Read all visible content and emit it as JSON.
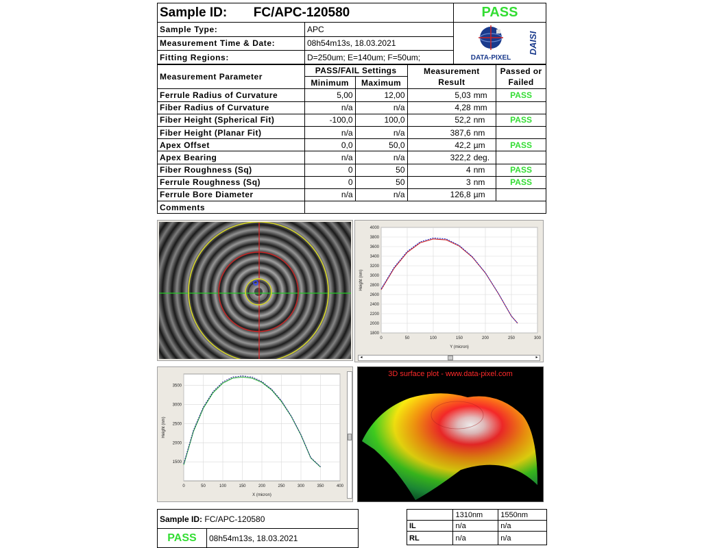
{
  "header": {
    "sample_id_label": "Sample ID:",
    "sample_id": "FC/APC-120580",
    "status": "PASS",
    "rows": [
      {
        "label": "Sample Type:",
        "value": "APC"
      },
      {
        "label": "Measurement Time & Date:",
        "value": "08h54m13s, 18.03.2021"
      },
      {
        "label": "Fitting Regions:",
        "value": "D=250um;   E=140um;   F=50um;"
      }
    ],
    "logo_text": "DATA-PIXEL",
    "logo_side_text": "DAISI"
  },
  "table": {
    "col_parameter": "Measurement Parameter",
    "col_settings": "PASS/FAIL Settings",
    "col_min": "Minimum",
    "col_max": "Maximum",
    "col_result": "Measurement Result",
    "col_status": "Passed or Failed",
    "rows": [
      {
        "param": "Ferrule Radius of Curvature",
        "min": "5,00",
        "max": "12,00",
        "result": "5,03",
        "unit": "mm",
        "status": "PASS"
      },
      {
        "param": "Fiber Radius of Curvature",
        "min": "n/a",
        "max": "n/a",
        "result": "4,28",
        "unit": "mm",
        "status": ""
      },
      {
        "param": "Fiber Height (Spherical Fit)",
        "min": "-100,0",
        "max": "100,0",
        "result": "52,2",
        "unit": "nm",
        "status": "PASS"
      },
      {
        "param": "Fiber Height (Planar Fit)",
        "min": "n/a",
        "max": "n/a",
        "result": "387,6",
        "unit": "nm",
        "status": ""
      },
      {
        "param": "Apex Offset",
        "min": "0,0",
        "max": "50,0",
        "result": "42,2",
        "unit": "µm",
        "status": "PASS"
      },
      {
        "param": "Apex Bearing",
        "min": "n/a",
        "max": "n/a",
        "result": "322,2",
        "unit": "deg.",
        "status": ""
      },
      {
        "param": "Fiber Roughness (Sq)",
        "min": "0",
        "max": "50",
        "result": "4",
        "unit": "nm",
        "status": "PASS"
      },
      {
        "param": "Ferrule Roughness (Sq)",
        "min": "0",
        "max": "50",
        "result": "3",
        "unit": "nm",
        "status": "PASS"
      },
      {
        "param": "Ferrule Bore Diameter",
        "min": "n/a",
        "max": "n/a",
        "result": "126,8",
        "unit": "µm",
        "status": ""
      }
    ],
    "comments_label": "Comments"
  },
  "surface_plot": {
    "title": "3D surface plot - www.data-pixel.com"
  },
  "chart_data": [
    {
      "type": "line",
      "xlabel": "Y (micron)",
      "ylabel": "Height (nm)",
      "xlim": [
        0,
        300
      ],
      "ylim": [
        1800,
        4000
      ],
      "xticks": [
        "0",
        "50",
        "100",
        "150",
        "200",
        "250",
        "300"
      ],
      "yticks": [
        "1800",
        "2000",
        "2200",
        "2400",
        "2600",
        "2800",
        "3000",
        "3200",
        "3400",
        "3600",
        "3800",
        "4000"
      ],
      "series": [
        {
          "color": "#cc2222",
          "x": [
            0,
            25,
            50,
            75,
            100,
            125,
            150,
            175,
            200,
            225,
            250,
            262
          ],
          "y": [
            2700,
            3150,
            3480,
            3680,
            3760,
            3740,
            3610,
            3380,
            3050,
            2620,
            2150,
            2000
          ]
        },
        {
          "color": "#2233cc",
          "x": [
            0,
            25,
            50,
            75,
            100,
            125,
            150,
            175,
            200,
            225,
            250,
            262
          ],
          "y": [
            2720,
            3170,
            3500,
            3700,
            3780,
            3760,
            3625,
            3390,
            3055,
            2625,
            2150,
            2000
          ]
        }
      ]
    },
    {
      "type": "line",
      "xlabel": "X (micron)",
      "ylabel": "Height (nm)",
      "xlim": [
        0,
        400
      ],
      "ylim": [
        1000,
        3800
      ],
      "xticks": [
        "0",
        "50",
        "100",
        "150",
        "200",
        "250",
        "300",
        "350",
        "400"
      ],
      "yticks": [
        "1500",
        "2000",
        "2500",
        "3000",
        "3500"
      ],
      "series": [
        {
          "color": "#22aa33",
          "x": [
            0,
            25,
            50,
            75,
            100,
            125,
            150,
            175,
            200,
            225,
            250,
            275,
            300,
            325,
            350
          ],
          "y": [
            1420,
            2300,
            2900,
            3310,
            3560,
            3690,
            3720,
            3690,
            3580,
            3380,
            3080,
            2690,
            2200,
            1600,
            1360
          ]
        },
        {
          "color": "#222288",
          "x": [
            0,
            25,
            50,
            75,
            100,
            125,
            150,
            175,
            200,
            225,
            250,
            275,
            300,
            325,
            350
          ],
          "y": [
            1450,
            2330,
            2930,
            3340,
            3590,
            3720,
            3750,
            3720,
            3600,
            3400,
            3100,
            2700,
            2210,
            1610,
            1370
          ]
        }
      ]
    }
  ],
  "footer": {
    "sample_id_label": "Sample ID:",
    "sample_id": "FC/APC-120580",
    "status": "PASS",
    "datetime": "08h54m13s, 18.03.2021",
    "wl1": "1310nm",
    "wl2": "1550nm",
    "rows": [
      {
        "label": "IL",
        "v1": "n/a",
        "v2": "n/a"
      },
      {
        "label": "RL",
        "v1": "n/a",
        "v2": "n/a"
      }
    ]
  },
  "colors": {
    "pass": "#33dd33",
    "logo_blue": "#1a3a8c",
    "logo_red": "#cc2222"
  }
}
